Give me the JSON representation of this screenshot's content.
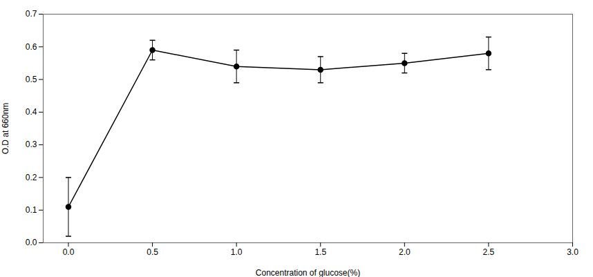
{
  "chart_data": {
    "type": "line",
    "x": [
      0.0,
      0.5,
      1.0,
      1.5,
      2.0,
      2.5
    ],
    "values": [
      0.11,
      0.59,
      0.54,
      0.53,
      0.55,
      0.58
    ],
    "yerr": [
      0.09,
      0.03,
      0.05,
      0.04,
      0.03,
      0.05
    ],
    "xlabel": "Concentration of glucose(%)",
    "ylabel": "O.D at 660nm",
    "xlim": [
      -0.15,
      3.0
    ],
    "ylim": [
      0.0,
      0.7
    ],
    "xticks": [
      {
        "value": 0.0,
        "label": "0.0"
      },
      0.5,
      {
        "value": 1.0,
        "label": "1.0"
      },
      1.5,
      {
        "value": 2.0,
        "label": "2.0"
      },
      2.5,
      {
        "value": 3.0,
        "label": "3.0"
      }
    ],
    "yticks": [
      {
        "value": 0.0,
        "label": "0.0"
      },
      0.1,
      0.2,
      0.3,
      0.4,
      0.5,
      0.6,
      0.7
    ],
    "color": "#000000",
    "marker": "o",
    "line_style": "solid",
    "grid": false
  }
}
